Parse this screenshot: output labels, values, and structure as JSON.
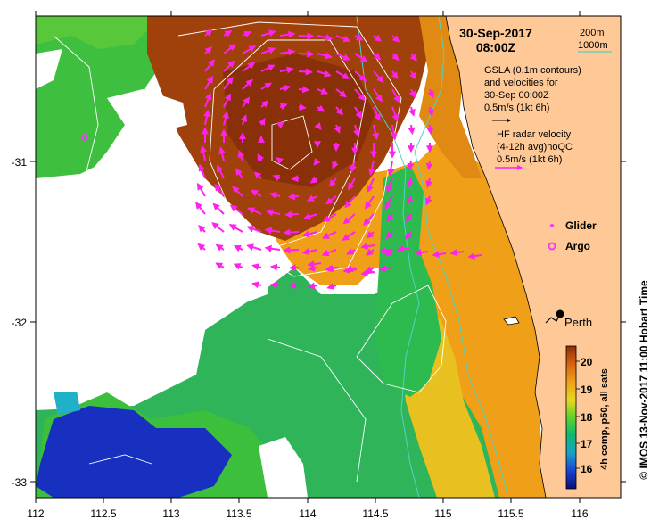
{
  "header": {
    "date": "30-Sep-2017",
    "time": "08:00Z"
  },
  "scale_legend": {
    "line1": "200m",
    "line2": "1000m",
    "contour_color": "#4fd3c4"
  },
  "gsla": {
    "line1": "GSLA (0.1m contours)",
    "line2": "and velocities for",
    "line3": "30-Sep 00:00Z",
    "line4": "0.5m/s (1kt 6h)"
  },
  "hf_radar": {
    "line1": "HF radar velocity",
    "line2": "(4-12h avg)noQC",
    "line3": "0.5m/s (1kt 6h)"
  },
  "markers": {
    "glider_label": "Glider",
    "argo_label": "Argo",
    "marker_color": "#ff33ff"
  },
  "place": {
    "perth": "Perth"
  },
  "axes": {
    "x_ticks": [
      "112",
      "112.5",
      "113",
      "113.5",
      "114",
      "114.5",
      "115",
      "115.5",
      "116"
    ],
    "y_ticks": [
      "-31",
      "-32",
      "-33"
    ]
  },
  "colorbar": {
    "ticks": [
      "20",
      "19",
      "18",
      "17",
      "16"
    ],
    "label": "4h comp, p50, all sats"
  },
  "credit": "© IMOS 13-Nov-2017 11:00 Hobart Time",
  "colors": {
    "land": "#fec996",
    "arrow": "#ff22ee",
    "sst_warm": "#a0400a",
    "sst_orange": "#f0a018",
    "sst_green": "#3fbf3f",
    "sst_blue": "#1830c0"
  }
}
